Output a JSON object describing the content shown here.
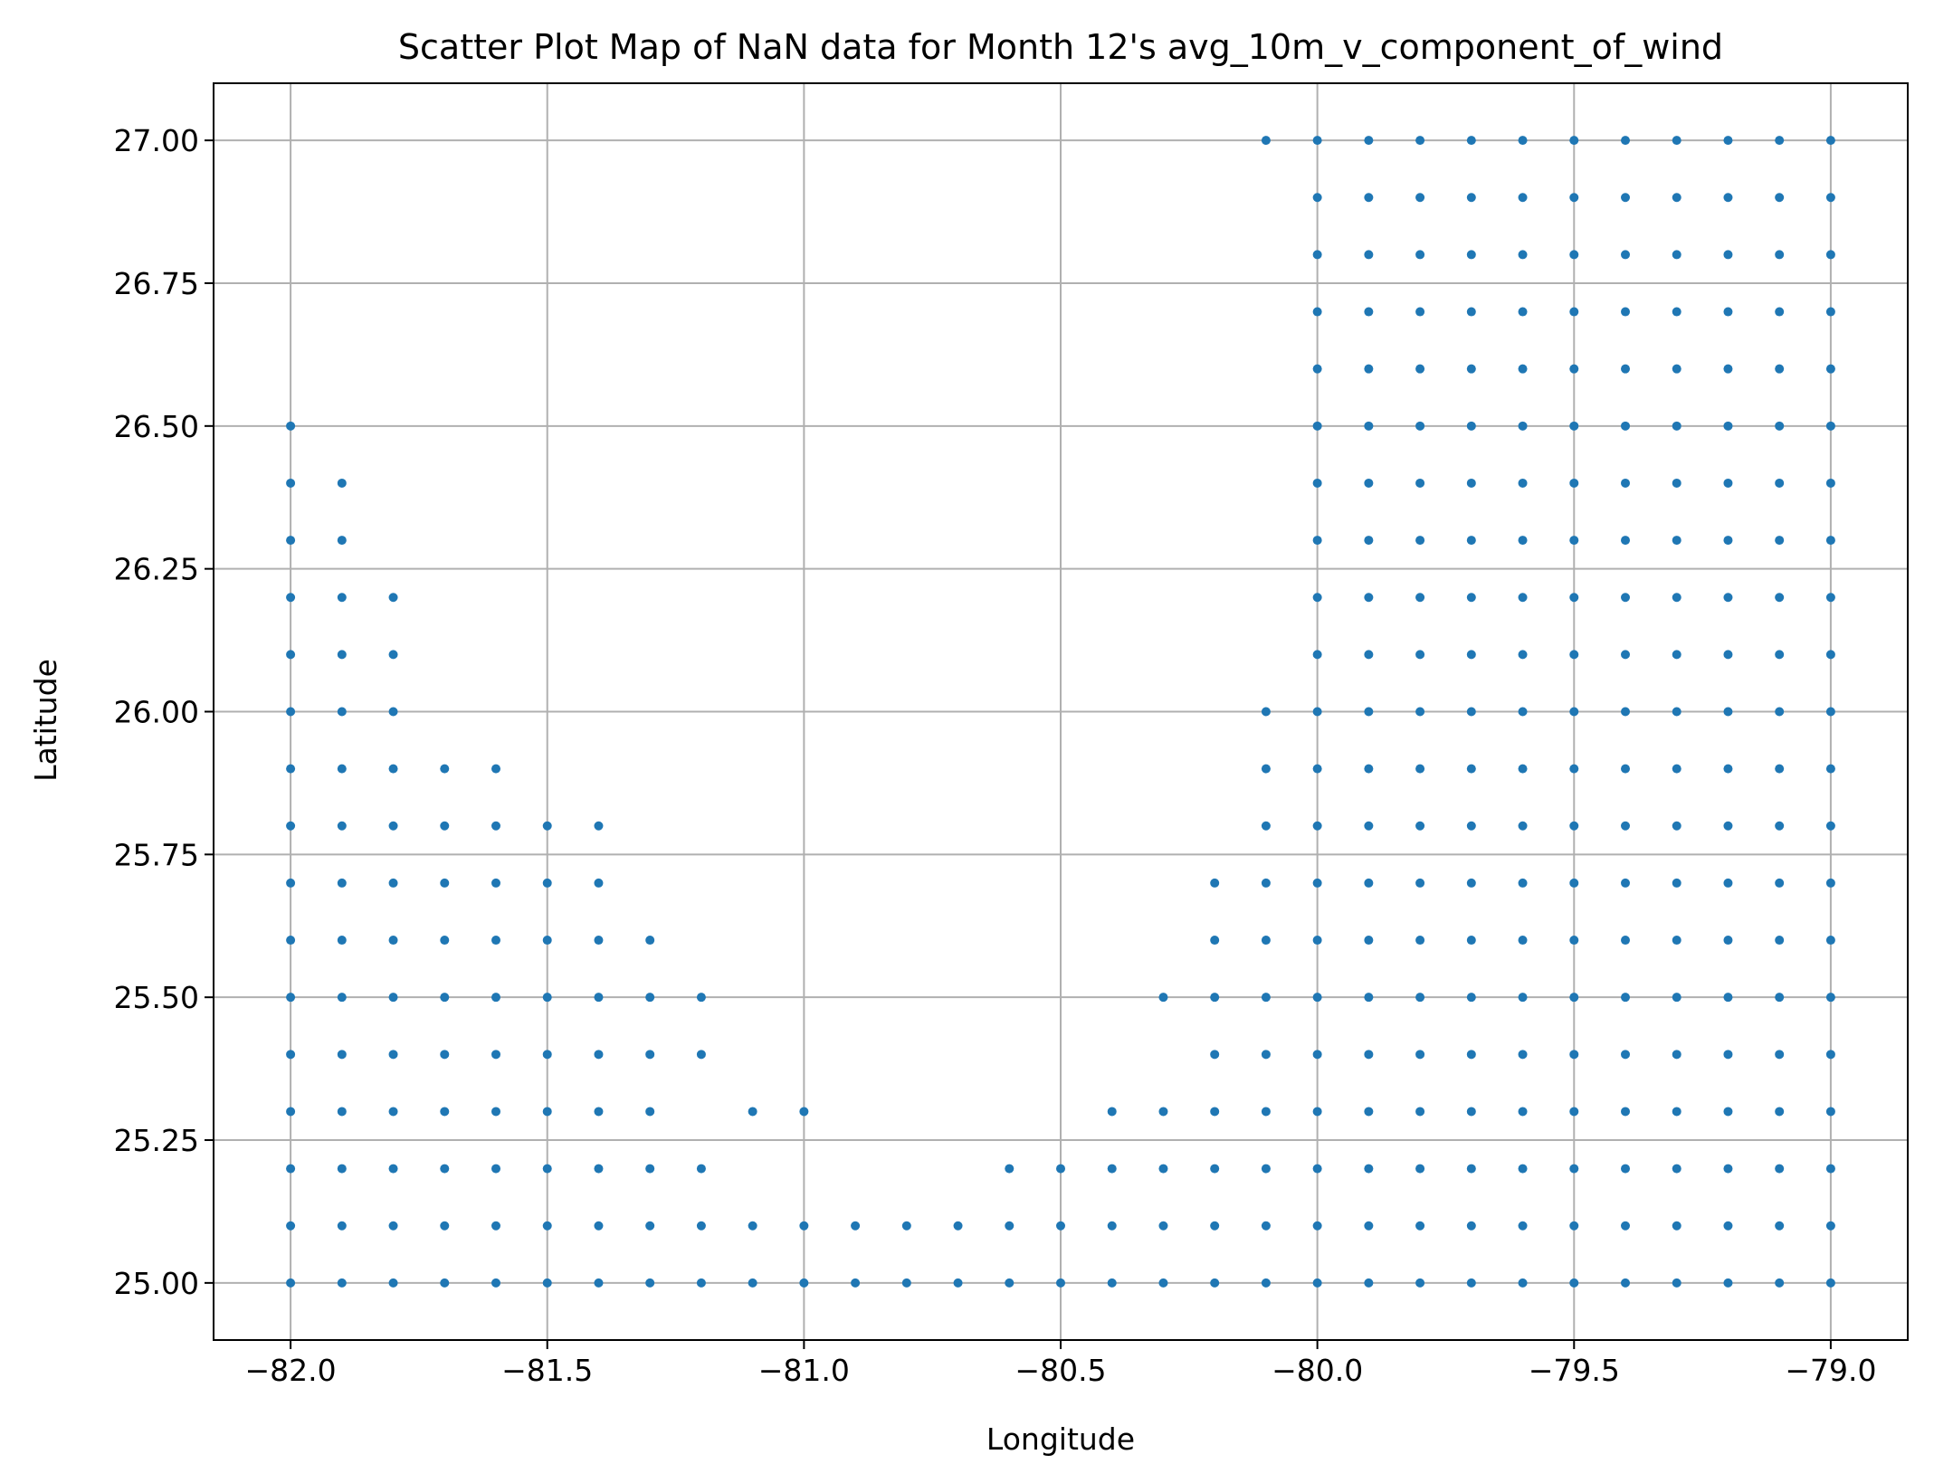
{
  "chart_data": {
    "type": "scatter",
    "title": "Scatter Plot Map of NaN data for Month 12's avg_10m_v_component_of_wind",
    "xlabel": "Longitude",
    "ylabel": "Latitude",
    "xlim": [
      -82.15,
      -78.85
    ],
    "ylim": [
      24.9,
      27.1
    ],
    "xticks": [
      -82.0,
      -81.5,
      -81.0,
      -80.5,
      -80.0,
      -79.5,
      -79.0
    ],
    "xtick_labels": [
      "−82.0",
      "−81.5",
      "−81.0",
      "−80.5",
      "−80.0",
      "−79.5",
      "−79.0"
    ],
    "yticks": [
      25.0,
      25.25,
      25.5,
      25.75,
      26.0,
      26.25,
      26.5,
      26.75,
      27.0
    ],
    "ytick_labels": [
      "25.00",
      "25.25",
      "25.50",
      "25.75",
      "26.00",
      "26.25",
      "26.50",
      "26.75",
      "27.00"
    ],
    "grid": true,
    "marker_color": "#1f77b4",
    "grid_color": "#b0b0b0",
    "points_by_longitude": [
      {
        "lon": -82.0,
        "lats": [
          25.0,
          25.1,
          25.2,
          25.3,
          25.4,
          25.5,
          25.6,
          25.7,
          25.8,
          25.9,
          26.0,
          26.1,
          26.2,
          26.3,
          26.4,
          26.5
        ]
      },
      {
        "lon": -81.9,
        "lats": [
          25.0,
          25.1,
          25.2,
          25.3,
          25.4,
          25.5,
          25.6,
          25.7,
          25.8,
          25.9,
          26.0,
          26.1,
          26.2,
          26.3,
          26.4
        ]
      },
      {
        "lon": -81.8,
        "lats": [
          25.0,
          25.1,
          25.2,
          25.3,
          25.4,
          25.5,
          25.6,
          25.7,
          25.8,
          25.9,
          26.0,
          26.1,
          26.2
        ]
      },
      {
        "lon": -81.7,
        "lats": [
          25.0,
          25.1,
          25.2,
          25.3,
          25.4,
          25.5,
          25.6,
          25.7,
          25.8,
          25.9
        ]
      },
      {
        "lon": -81.6,
        "lats": [
          25.0,
          25.1,
          25.2,
          25.3,
          25.4,
          25.5,
          25.6,
          25.7,
          25.8,
          25.9
        ]
      },
      {
        "lon": -81.5,
        "lats": [
          25.0,
          25.1,
          25.2,
          25.3,
          25.4,
          25.5,
          25.6,
          25.7,
          25.8
        ]
      },
      {
        "lon": -81.4,
        "lats": [
          25.0,
          25.1,
          25.2,
          25.3,
          25.4,
          25.5,
          25.6,
          25.7,
          25.8
        ]
      },
      {
        "lon": -81.3,
        "lats": [
          25.0,
          25.1,
          25.2,
          25.3,
          25.4,
          25.5,
          25.6
        ]
      },
      {
        "lon": -81.2,
        "lats": [
          25.0,
          25.1,
          25.2,
          25.4,
          25.5
        ]
      },
      {
        "lon": -81.1,
        "lats": [
          25.0,
          25.1,
          25.3
        ]
      },
      {
        "lon": -81.0,
        "lats": [
          25.0,
          25.1,
          25.3
        ]
      },
      {
        "lon": -80.9,
        "lats": [
          25.0,
          25.1
        ]
      },
      {
        "lon": -80.8,
        "lats": [
          25.0,
          25.1
        ]
      },
      {
        "lon": -80.7,
        "lats": [
          25.0,
          25.1
        ]
      },
      {
        "lon": -80.6,
        "lats": [
          25.0,
          25.1,
          25.2
        ]
      },
      {
        "lon": -80.5,
        "lats": [
          25.0,
          25.1,
          25.2
        ]
      },
      {
        "lon": -80.4,
        "lats": [
          25.0,
          25.1,
          25.2,
          25.3
        ]
      },
      {
        "lon": -80.3,
        "lats": [
          25.0,
          25.1,
          25.2,
          25.3,
          25.5
        ]
      },
      {
        "lon": -80.2,
        "lats": [
          25.0,
          25.1,
          25.2,
          25.3,
          25.4,
          25.5,
          25.6,
          25.7
        ]
      },
      {
        "lon": -80.1,
        "lats": [
          25.0,
          25.1,
          25.2,
          25.3,
          25.4,
          25.5,
          25.6,
          25.7,
          25.8,
          25.9,
          26.0,
          27.0
        ]
      },
      {
        "lon": -80.0,
        "lats": [
          25.0,
          25.1,
          25.2,
          25.3,
          25.4,
          25.5,
          25.6,
          25.7,
          25.8,
          25.9,
          26.0,
          26.1,
          26.2,
          26.3,
          26.4,
          26.5,
          26.6,
          26.7,
          26.8,
          26.9,
          27.0
        ]
      },
      {
        "lon": -79.9,
        "lats": [
          25.0,
          25.1,
          25.2,
          25.3,
          25.4,
          25.5,
          25.6,
          25.7,
          25.8,
          25.9,
          26.0,
          26.1,
          26.2,
          26.3,
          26.4,
          26.5,
          26.6,
          26.7,
          26.8,
          26.9,
          27.0
        ]
      },
      {
        "lon": -79.8,
        "lats": [
          25.0,
          25.1,
          25.2,
          25.3,
          25.4,
          25.5,
          25.6,
          25.7,
          25.8,
          25.9,
          26.0,
          26.1,
          26.2,
          26.3,
          26.4,
          26.5,
          26.6,
          26.7,
          26.8,
          26.9,
          27.0
        ]
      },
      {
        "lon": -79.7,
        "lats": [
          25.0,
          25.1,
          25.2,
          25.3,
          25.4,
          25.5,
          25.6,
          25.7,
          25.8,
          25.9,
          26.0,
          26.1,
          26.2,
          26.3,
          26.4,
          26.5,
          26.6,
          26.7,
          26.8,
          26.9,
          27.0
        ]
      },
      {
        "lon": -79.6,
        "lats": [
          25.0,
          25.1,
          25.2,
          25.3,
          25.4,
          25.5,
          25.6,
          25.7,
          25.8,
          25.9,
          26.0,
          26.1,
          26.2,
          26.3,
          26.4,
          26.5,
          26.6,
          26.7,
          26.8,
          26.9,
          27.0
        ]
      },
      {
        "lon": -79.5,
        "lats": [
          25.0,
          25.1,
          25.2,
          25.3,
          25.4,
          25.5,
          25.6,
          25.7,
          25.8,
          25.9,
          26.0,
          26.1,
          26.2,
          26.3,
          26.4,
          26.5,
          26.6,
          26.7,
          26.8,
          26.9,
          27.0
        ]
      },
      {
        "lon": -79.4,
        "lats": [
          25.0,
          25.1,
          25.2,
          25.3,
          25.4,
          25.5,
          25.6,
          25.7,
          25.8,
          25.9,
          26.0,
          26.1,
          26.2,
          26.3,
          26.4,
          26.5,
          26.6,
          26.7,
          26.8,
          26.9,
          27.0
        ]
      },
      {
        "lon": -79.3,
        "lats": [
          25.0,
          25.1,
          25.2,
          25.3,
          25.4,
          25.5,
          25.6,
          25.7,
          25.8,
          25.9,
          26.0,
          26.1,
          26.2,
          26.3,
          26.4,
          26.5,
          26.6,
          26.7,
          26.8,
          26.9,
          27.0
        ]
      },
      {
        "lon": -79.2,
        "lats": [
          25.0,
          25.1,
          25.2,
          25.3,
          25.4,
          25.5,
          25.6,
          25.7,
          25.8,
          25.9,
          26.0,
          26.1,
          26.2,
          26.3,
          26.4,
          26.5,
          26.6,
          26.7,
          26.8,
          26.9,
          27.0
        ]
      },
      {
        "lon": -79.1,
        "lats": [
          25.0,
          25.1,
          25.2,
          25.3,
          25.4,
          25.5,
          25.6,
          25.7,
          25.8,
          25.9,
          26.0,
          26.1,
          26.2,
          26.3,
          26.4,
          26.5,
          26.6,
          26.7,
          26.8,
          26.9,
          27.0
        ]
      },
      {
        "lon": -79.0,
        "lats": [
          25.0,
          25.1,
          25.2,
          25.3,
          25.4,
          25.5,
          25.6,
          25.7,
          25.8,
          25.9,
          26.0,
          26.1,
          26.2,
          26.3,
          26.4,
          26.5,
          26.6,
          26.7,
          26.8,
          26.9,
          27.0
        ]
      }
    ]
  }
}
